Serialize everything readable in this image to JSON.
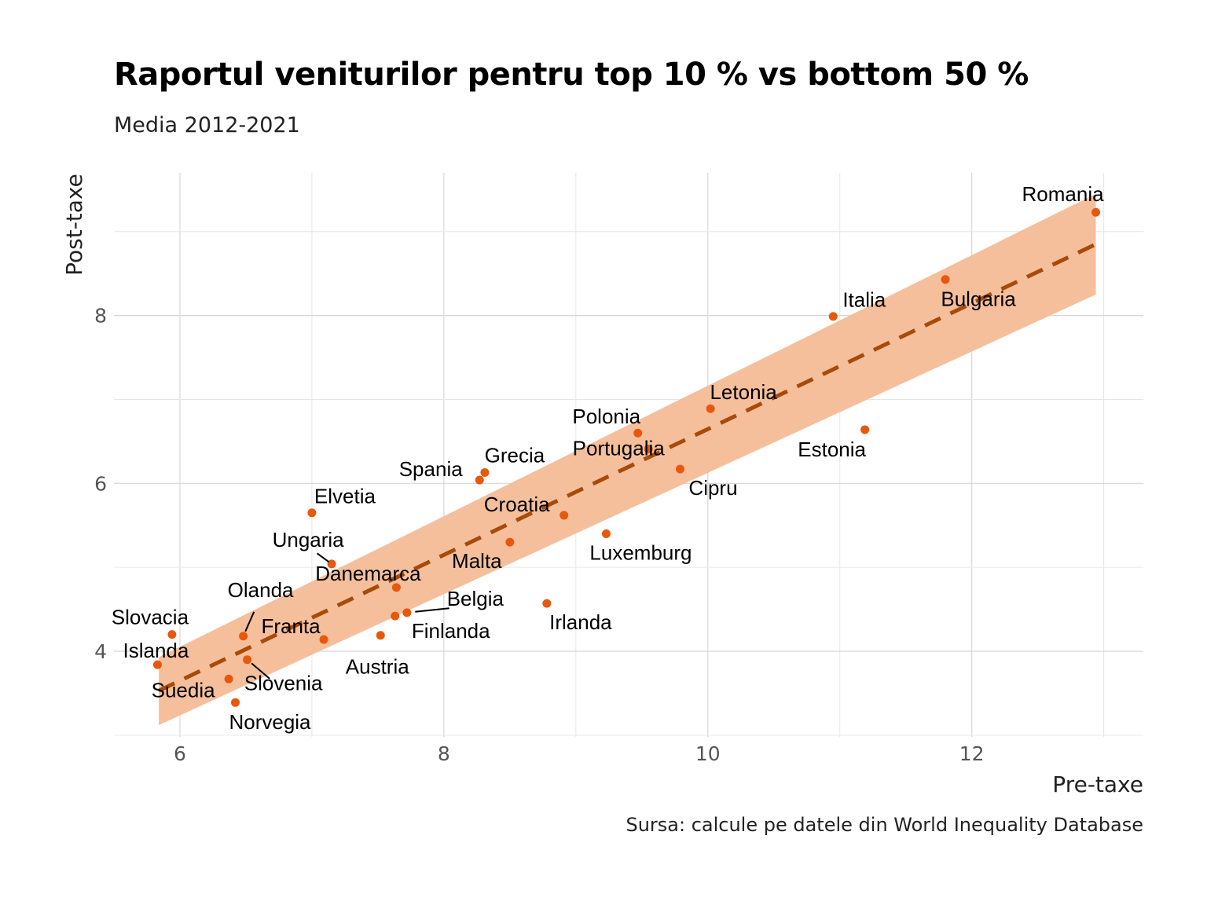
{
  "chart_data": {
    "type": "scatter",
    "title": "Raportul veniturilor pentru top 10 % vs bottom 50 %",
    "subtitle": "Media 2012-2021",
    "caption": "Sursa: calcule pe datele din World Inequality Database",
    "xlabel": "Pre-taxe",
    "ylabel": "Post-taxe",
    "xlim": [
      5.5,
      13.3
    ],
    "ylim": [
      2.98,
      9.7
    ],
    "xticks": [
      6,
      8,
      10,
      12
    ],
    "yticks": [
      4,
      6,
      8
    ],
    "grid": true,
    "point_color": "#e8580c",
    "trend": {
      "type": "linear",
      "line_style": "dashed",
      "line_color": "#a84a08",
      "band_color": "#f5bf9c",
      "x": [
        5.84,
        12.94
      ],
      "y": [
        3.53,
        8.85
      ],
      "band_lower": [
        3.12,
        8.25
      ],
      "band_upper": [
        3.93,
        9.45
      ]
    },
    "points": [
      {
        "label": "Romania",
        "x": 12.94,
        "y": 9.23
      },
      {
        "label": "Bulgaria",
        "x": 11.8,
        "y": 8.43
      },
      {
        "label": "Italia",
        "x": 10.95,
        "y": 7.99
      },
      {
        "label": "Letonia",
        "x": 10.02,
        "y": 6.89
      },
      {
        "label": "Estonia",
        "x": 11.19,
        "y": 6.64
      },
      {
        "label": "Polonia",
        "x": 9.47,
        "y": 6.6
      },
      {
        "label": "Portugalia",
        "x": 9.55,
        "y": 6.41
      },
      {
        "label": "Cipru",
        "x": 9.79,
        "y": 6.17
      },
      {
        "label": "Grecia",
        "x": 8.31,
        "y": 6.13
      },
      {
        "label": "Spania",
        "x": 8.27,
        "y": 6.04
      },
      {
        "label": "Croatia",
        "x": 8.91,
        "y": 5.62
      },
      {
        "label": "Luxemburg",
        "x": 9.23,
        "y": 5.4
      },
      {
        "label": "Malta",
        "x": 8.5,
        "y": 5.3
      },
      {
        "label": "Elvetia",
        "x": 7.0,
        "y": 5.65
      },
      {
        "label": "Ungaria",
        "x": 7.15,
        "y": 5.04
      },
      {
        "label": "Danemarca",
        "x": 7.64,
        "y": 4.76
      },
      {
        "label": "Irlanda",
        "x": 8.78,
        "y": 4.57
      },
      {
        "label": "Belgia",
        "x": 7.72,
        "y": 4.46
      },
      {
        "label": "Finlanda",
        "x": 7.63,
        "y": 4.42
      },
      {
        "label": "Austria",
        "x": 7.52,
        "y": 4.19
      },
      {
        "label": "Franta",
        "x": 7.09,
        "y": 4.14
      },
      {
        "label": "Olanda",
        "x": 6.48,
        "y": 4.18
      },
      {
        "label": "Slovacia",
        "x": 5.94,
        "y": 4.2
      },
      {
        "label": "Islanda",
        "x": 5.83,
        "y": 3.84
      },
      {
        "label": "Slovenia",
        "x": 6.51,
        "y": 3.9
      },
      {
        "label": "Suedia",
        "x": 6.37,
        "y": 3.67
      },
      {
        "label": "Norvegia",
        "x": 6.42,
        "y": 3.39
      }
    ]
  }
}
